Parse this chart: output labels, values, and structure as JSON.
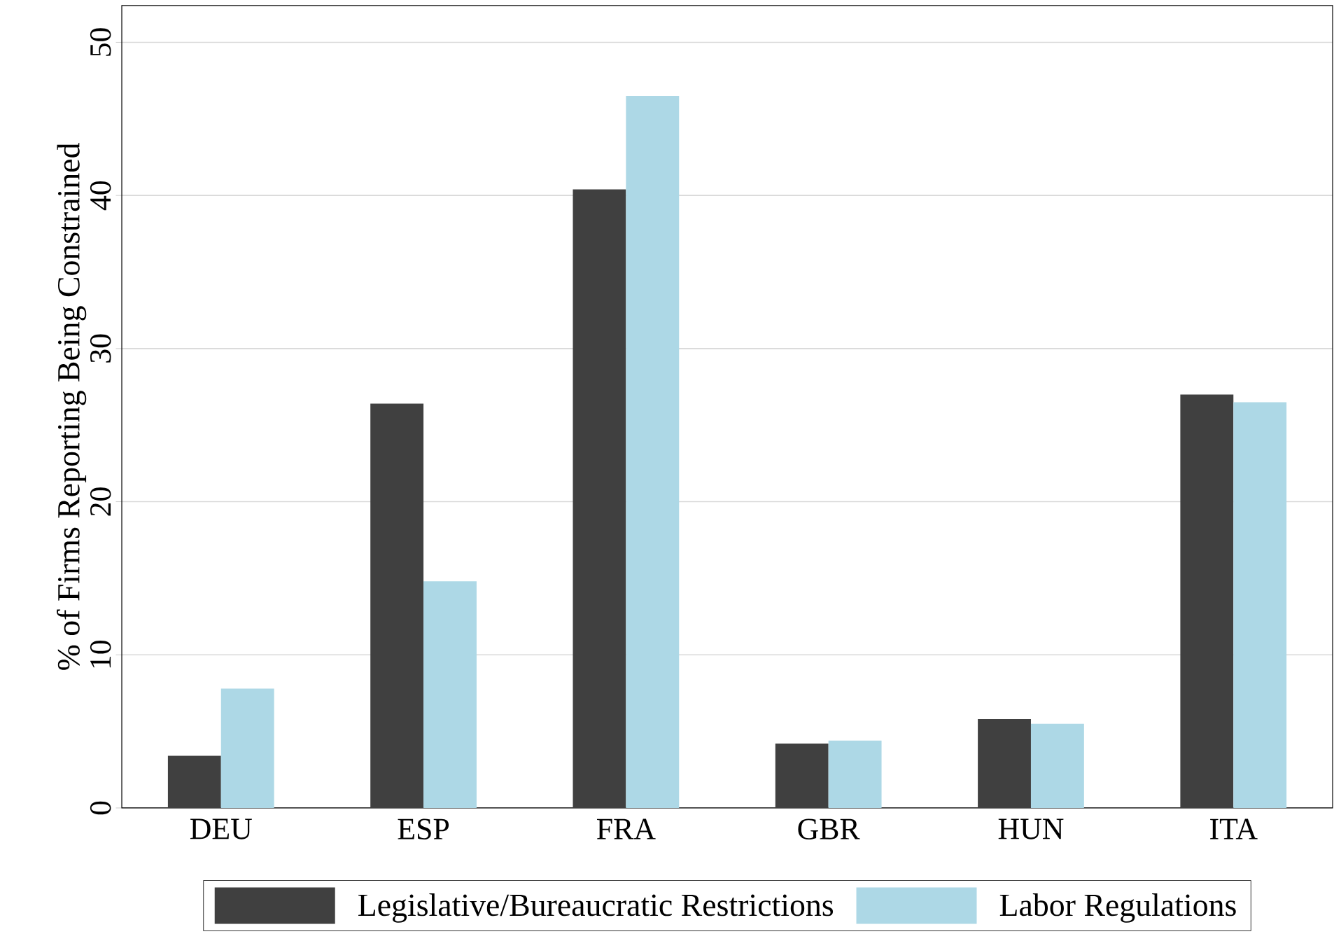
{
  "chart_data": {
    "type": "bar",
    "ylabel": "% of Firms Reporting Being Constrained",
    "categories": [
      "DEU",
      "ESP",
      "FRA",
      "GBR",
      "HUN",
      "ITA"
    ],
    "series": [
      {
        "name": "Legislative/Bureaucratic Restrictions",
        "color": "#404040",
        "values": [
          3.4,
          26.4,
          40.4,
          4.2,
          5.8,
          27.0
        ]
      },
      {
        "name": "Labor Regulations",
        "color": "#add8e6",
        "values": [
          7.8,
          14.8,
          46.5,
          4.4,
          5.5,
          26.5
        ]
      }
    ],
    "ylim": [
      0,
      52.4
    ],
    "yticks": [
      0,
      10,
      20,
      30,
      40,
      50
    ],
    "grid": "y",
    "legend": "bottom"
  }
}
